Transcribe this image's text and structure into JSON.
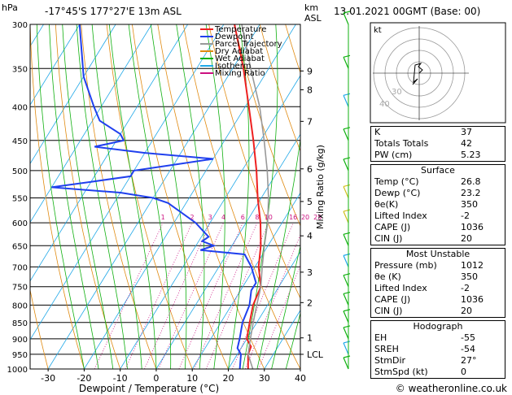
{
  "header": {
    "hpa_unit": "hPa",
    "location": "-17°45'S  177°27'E  13m  ASL",
    "km_unit": "km",
    "asl": "ASL",
    "datetime": "13.01.2021  00GMT  (Base: 00)"
  },
  "chart_data": {
    "type": "line",
    "title": "",
    "xlabel": "Dewpoint / Temperature (°C)",
    "ylabel": "hPa",
    "mixing_ratio_axis_label": "Mixing Ratio (g/kg)",
    "x_ticks": [
      -30,
      -20,
      -10,
      0,
      10,
      20,
      30,
      40
    ],
    "xlim": [
      -35,
      40
    ],
    "pressure_levels": [
      300,
      350,
      400,
      450,
      500,
      550,
      600,
      650,
      700,
      750,
      800,
      850,
      900,
      950,
      1000
    ],
    "ylim": [
      300,
      1000
    ],
    "km_ticks": [
      {
        "label": "9",
        "p": 353
      },
      {
        "label": "8",
        "p": 377
      },
      {
        "label": "7",
        "p": 421
      },
      {
        "label": "6",
        "p": 497
      },
      {
        "label": "5",
        "p": 557
      },
      {
        "label": "4",
        "p": 628
      },
      {
        "label": "3",
        "p": 713
      },
      {
        "label": "2",
        "p": 793
      },
      {
        "label": "1",
        "p": 897
      },
      {
        "label": "LCL",
        "p": 950
      }
    ],
    "mixing_ratio_labels": [
      "1",
      "2",
      "3",
      "4",
      "6",
      "8",
      "10",
      "16",
      "20",
      "25"
    ],
    "legend": [
      {
        "name": "Temperature",
        "color": "#ee2020"
      },
      {
        "name": "Dewpoint",
        "color": "#2040ee"
      },
      {
        "name": "Parcel Trajectory",
        "color": "#999999"
      },
      {
        "name": "Dry Adiabat",
        "color": "#e08a10"
      },
      {
        "name": "Wet Adiabat",
        "color": "#10b010"
      },
      {
        "name": "Isotherm",
        "color": "#20a8e8"
      },
      {
        "name": "Mixing Ratio",
        "color": "#cc1080"
      }
    ],
    "series": [
      {
        "name": "Temperature",
        "points": [
          [
            1000,
            25.5
          ],
          [
            950,
            23
          ],
          [
            925,
            22.5
          ],
          [
            900,
            20
          ],
          [
            850,
            18
          ],
          [
            800,
            16
          ],
          [
            750,
            15
          ],
          [
            700,
            11
          ],
          [
            650,
            8
          ],
          [
            600,
            4
          ],
          [
            550,
            -1
          ],
          [
            500,
            -6
          ],
          [
            450,
            -12
          ],
          [
            400,
            -19
          ],
          [
            350,
            -27
          ],
          [
            300,
            -37
          ]
        ]
      },
      {
        "name": "Dewpoint",
        "points": [
          [
            1000,
            23.2
          ],
          [
            950,
            21
          ],
          [
            930,
            19
          ],
          [
            900,
            18
          ],
          [
            850,
            16
          ],
          [
            800,
            15
          ],
          [
            760,
            13
          ],
          [
            740,
            13
          ],
          [
            700,
            9
          ],
          [
            670,
            5
          ],
          [
            660,
            -8
          ],
          [
            650,
            -5
          ],
          [
            640,
            -9
          ],
          [
            630,
            -8
          ],
          [
            620,
            -10
          ],
          [
            600,
            -14
          ],
          [
            560,
            -25
          ],
          [
            550,
            -30
          ],
          [
            540,
            -40
          ],
          [
            530,
            -60
          ],
          [
            520,
            -50
          ],
          [
            510,
            -40
          ],
          [
            500,
            -40
          ],
          [
            490,
            -30
          ],
          [
            480,
            -20
          ],
          [
            470,
            -40
          ],
          [
            460,
            -55
          ],
          [
            450,
            -48
          ],
          [
            440,
            -50
          ],
          [
            420,
            -58
          ],
          [
            400,
            -62
          ],
          [
            360,
            -70
          ],
          [
            300,
            -80
          ]
        ]
      },
      {
        "name": "Parcel Trajectory",
        "points": [
          [
            1000,
            26.8
          ],
          [
            950,
            23
          ],
          [
            900,
            21
          ],
          [
            850,
            19
          ],
          [
            800,
            17
          ],
          [
            750,
            15
          ],
          [
            700,
            12
          ],
          [
            650,
            9
          ],
          [
            600,
            6
          ],
          [
            550,
            2
          ],
          [
            500,
            -3
          ],
          [
            450,
            -9
          ],
          [
            400,
            -16
          ],
          [
            350,
            -25
          ],
          [
            300,
            -35
          ]
        ]
      }
    ]
  },
  "hodograph": {
    "unit_label": "kt",
    "rings": [
      "10",
      "20",
      "30",
      "40"
    ]
  },
  "indices": {
    "k_label": "K",
    "k": "37",
    "tt_label": "Totals Totals",
    "tt": "42",
    "pw_label": "PW (cm)",
    "pw": "5.23"
  },
  "surface": {
    "title": "Surface",
    "temp_label": "Temp (°C)",
    "temp": "26.8",
    "dewp_label": "Dewp (°C)",
    "dewp": "23.2",
    "theta_label": "θe(K)",
    "theta": "350",
    "li_label": "Lifted Index",
    "li": "-2",
    "cape_label": "CAPE (J)",
    "cape": "1036",
    "cin_label": "CIN (J)",
    "cin": "20"
  },
  "most_unstable": {
    "title": "Most Unstable",
    "pressure_label": "Pressure (mb)",
    "pressure": "1012",
    "theta_label": "θe (K)",
    "theta": "350",
    "li_label": "Lifted Index",
    "li": "-2",
    "cape_label": "CAPE (J)",
    "cape": "1036",
    "cin_label": "CIN (J)",
    "cin": "20"
  },
  "hodo_table": {
    "title": "Hodograph",
    "eh_label": "EH",
    "eh": "-55",
    "sreh_label": "SREH",
    "sreh": "-54",
    "stmdir_label": "StmDir",
    "stmdir": "27°",
    "stmspd_label": "StmSpd (kt)",
    "stmspd": "0"
  },
  "copyright": "© weatheronline.co.uk"
}
